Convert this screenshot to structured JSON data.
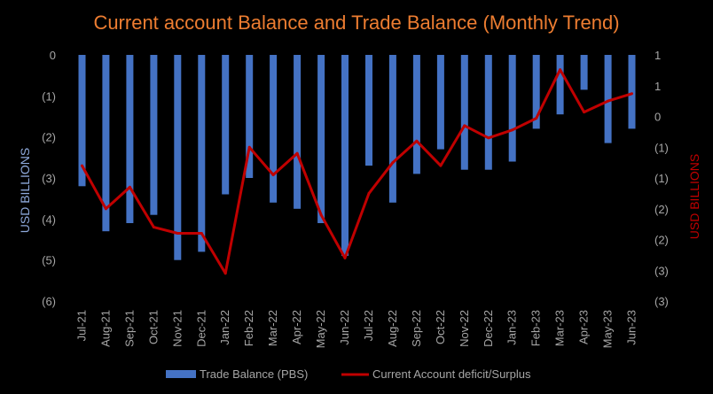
{
  "chart_data": {
    "type": "bar+line",
    "title": "Current account Balance and Trade Balance (Monthly Trend)",
    "ylabel_left": "USD BILLIONS",
    "ylabel_right": "USD BILLIONS",
    "categories": [
      "Jul-21",
      "Aug-21",
      "Sep-21",
      "Oct-21",
      "Nov-21",
      "Dec-21",
      "Jan-22",
      "Feb-22",
      "Mar-22",
      "Apr-22",
      "May-22",
      "Jun-22",
      "Jul-22",
      "Aug-22",
      "Sep-22",
      "Oct-22",
      "Nov-22",
      "Dec-22",
      "Jan-23",
      "Feb-23",
      "Mar-23",
      "Apr-23",
      "May-23",
      "Jun-23"
    ],
    "left_axis": {
      "ylim": [
        -6,
        0
      ],
      "ticks": [
        "0",
        "(1)",
        "(2)",
        "(3)",
        "(4)",
        "(5)",
        "(6)"
      ],
      "tick_values": [
        0,
        -1,
        -2,
        -3,
        -4,
        -5,
        -6
      ]
    },
    "right_axis": {
      "ylim": [
        -3,
        1
      ],
      "ticks": [
        "1",
        "1",
        "0",
        "(1)",
        "(1)",
        "(2)",
        "(2)",
        "(3)",
        "(3)"
      ],
      "tick_values": [
        1,
        0.5,
        0,
        -0.5,
        -1,
        -1.5,
        -2,
        -2.5,
        -3
      ]
    },
    "series": [
      {
        "name": "Trade Balance (PBS)",
        "type": "bar",
        "axis": "left",
        "color": "#4472C4",
        "values": [
          -3.2,
          -4.3,
          -4.1,
          -3.9,
          -5.0,
          -4.8,
          -3.4,
          -3.0,
          -3.6,
          -3.75,
          -4.1,
          -4.9,
          -2.7,
          -3.6,
          -2.9,
          -2.3,
          -2.8,
          -2.8,
          -2.6,
          -1.8,
          -1.45,
          -0.85,
          -2.15,
          -1.8
        ]
      },
      {
        "name": "Current Account deficit/Surplus",
        "type": "line",
        "axis": "right",
        "color": "#C00000",
        "values": [
          -0.8,
          -1.5,
          -1.15,
          -1.8,
          -1.9,
          -1.9,
          -2.55,
          -0.5,
          -0.95,
          -0.6,
          -1.6,
          -2.3,
          -1.25,
          -0.75,
          -0.4,
          -0.8,
          -0.15,
          -0.35,
          -0.22,
          -0.03,
          0.76,
          0.07,
          0.25,
          0.37
        ]
      }
    ]
  }
}
